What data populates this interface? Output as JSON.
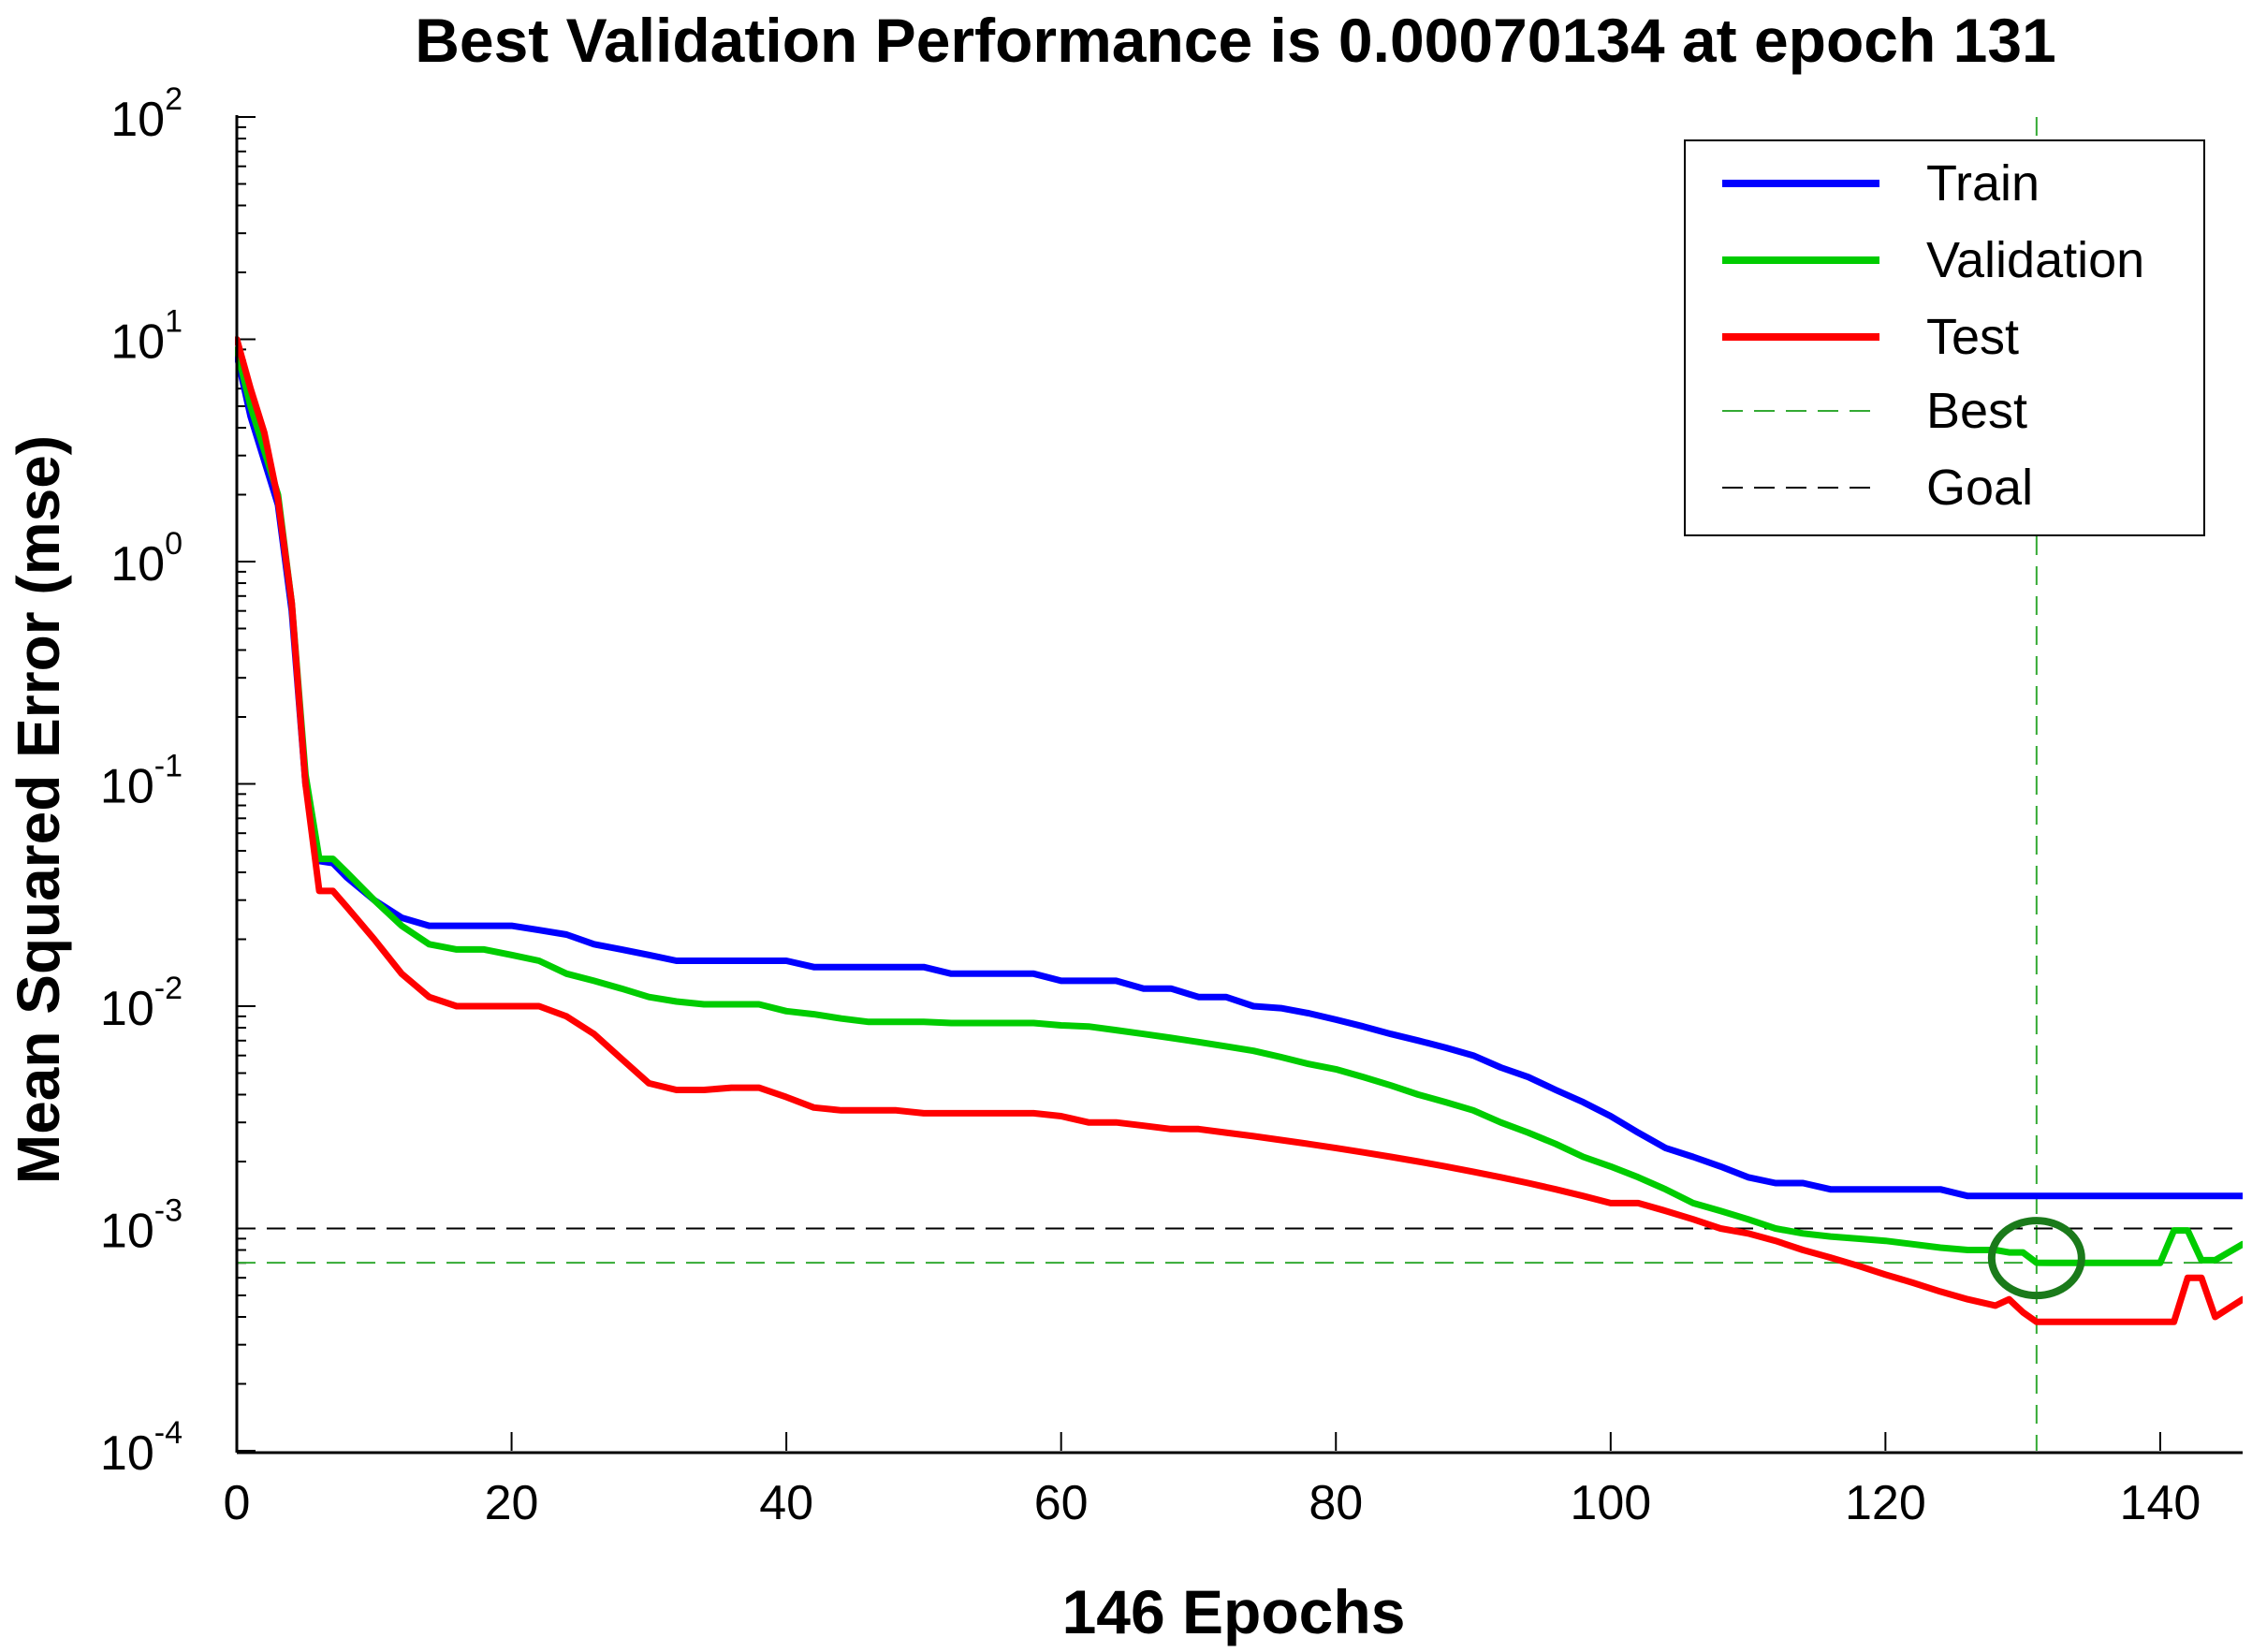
{
  "colors": {
    "train": "#0000ff",
    "validation": "#00cc00",
    "test": "#ff0000",
    "best": "#33aa33",
    "goal": "#000000",
    "best_marker": "#1a7a1a"
  },
  "chart_data": {
    "type": "line",
    "title": "Best Validation Performance is 0.00070134 at epoch 131",
    "xlabel": "146 Epochs",
    "ylabel": "Mean Squared Error  (mse)",
    "yscale": "log",
    "xlim": [
      0,
      146
    ],
    "ylim": [
      0.0001,
      100
    ],
    "x_ticks": [
      0,
      20,
      40,
      60,
      80,
      100,
      120,
      140
    ],
    "x_tick_labels": [
      "0",
      "20",
      "40",
      "60",
      "80",
      "100",
      "120",
      "140"
    ],
    "y_ticks": [
      {
        "value": 100,
        "base": "10",
        "exp": "2"
      },
      {
        "value": 10,
        "base": "10",
        "exp": "1"
      },
      {
        "value": 1,
        "base": "10",
        "exp": "0"
      },
      {
        "value": 0.1,
        "base": "10",
        "exp": "-1"
      },
      {
        "value": 0.01,
        "base": "10",
        "exp": "-2"
      },
      {
        "value": 0.001,
        "base": "10",
        "exp": "-3"
      },
      {
        "value": 0.0001,
        "base": "10",
        "exp": "-4"
      }
    ],
    "legend_position": "top-right",
    "legend": [
      "Train",
      "Validation",
      "Test",
      "Best",
      "Goal"
    ],
    "series": [
      {
        "name": "Train",
        "x": [
          0,
          1,
          3,
          4,
          5,
          6,
          7,
          8,
          10,
          12,
          14,
          16,
          18,
          20,
          22,
          24,
          26,
          28,
          30,
          32,
          34,
          36,
          38,
          40,
          42,
          44,
          46,
          48,
          50,
          52,
          54,
          56,
          58,
          60,
          62,
          64,
          66,
          68,
          70,
          72,
          74,
          76,
          78,
          80,
          82,
          84,
          86,
          88,
          90,
          92,
          94,
          96,
          98,
          100,
          102,
          104,
          106,
          108,
          110,
          112,
          114,
          116,
          118,
          120,
          122,
          124,
          126,
          128,
          130,
          132,
          134,
          136,
          138,
          140,
          141,
          142,
          143,
          144,
          146
        ],
        "values": [
          8.5,
          4.5,
          1.8,
          0.6,
          0.1,
          0.045,
          0.044,
          0.038,
          0.03,
          0.025,
          0.023,
          0.023,
          0.023,
          0.023,
          0.022,
          0.021,
          0.019,
          0.018,
          0.017,
          0.016,
          0.016,
          0.016,
          0.016,
          0.016,
          0.015,
          0.015,
          0.015,
          0.015,
          0.015,
          0.014,
          0.014,
          0.014,
          0.014,
          0.013,
          0.013,
          0.013,
          0.012,
          0.012,
          0.011,
          0.011,
          0.01,
          0.0098,
          0.0093,
          0.0087,
          0.0081,
          0.0075,
          0.007,
          0.0065,
          0.006,
          0.0053,
          0.0048,
          0.0042,
          0.0037,
          0.0032,
          0.0027,
          0.0023,
          0.0021,
          0.0019,
          0.0017,
          0.0016,
          0.0016,
          0.0015,
          0.0015,
          0.0015,
          0.0015,
          0.0015,
          0.0014,
          0.0014,
          0.0014,
          0.0014,
          0.0014,
          0.0014,
          0.0014,
          0.0014,
          0.0014,
          0.0014,
          0.0014,
          0.0014,
          0.0014
        ]
      },
      {
        "name": "Validation",
        "x": [
          0,
          1,
          3,
          4,
          5,
          6,
          7,
          8,
          10,
          12,
          14,
          16,
          18,
          20,
          22,
          24,
          26,
          28,
          30,
          32,
          34,
          36,
          38,
          40,
          42,
          44,
          46,
          48,
          50,
          52,
          54,
          56,
          58,
          60,
          62,
          64,
          66,
          68,
          70,
          72,
          74,
          76,
          78,
          80,
          82,
          84,
          86,
          88,
          90,
          92,
          94,
          96,
          98,
          100,
          102,
          104,
          106,
          108,
          110,
          112,
          114,
          116,
          118,
          120,
          122,
          124,
          126,
          128,
          129,
          130,
          131,
          132,
          134,
          136,
          138,
          140,
          141,
          142,
          143,
          144,
          146
        ],
        "values": [
          9,
          5,
          2,
          0.65,
          0.11,
          0.046,
          0.046,
          0.04,
          0.03,
          0.023,
          0.019,
          0.018,
          0.018,
          0.017,
          0.016,
          0.014,
          0.013,
          0.012,
          0.011,
          0.0105,
          0.0102,
          0.0102,
          0.0102,
          0.0095,
          0.0092,
          0.0088,
          0.0085,
          0.0085,
          0.0085,
          0.0084,
          0.0084,
          0.0084,
          0.0084,
          0.0082,
          0.0081,
          0.0078,
          0.0075,
          0.0072,
          0.0069,
          0.0066,
          0.0063,
          0.0059,
          0.0055,
          0.0052,
          0.0048,
          0.0044,
          0.004,
          0.0037,
          0.0034,
          0.003,
          0.0027,
          0.0024,
          0.0021,
          0.0019,
          0.0017,
          0.0015,
          0.0013,
          0.0012,
          0.0011,
          0.001,
          0.00095,
          0.00092,
          0.0009,
          0.00088,
          0.00085,
          0.00082,
          0.0008,
          0.0008,
          0.00078,
          0.00078,
          0.00070134,
          0.0007,
          0.0007,
          0.0007,
          0.0007,
          0.0007,
          0.00098,
          0.00098,
          0.00072,
          0.00072,
          0.00085
        ]
      },
      {
        "name": "Test",
        "x": [
          0,
          1,
          2,
          3,
          4,
          5,
          6,
          7,
          8,
          10,
          12,
          14,
          16,
          18,
          20,
          22,
          24,
          26,
          28,
          30,
          32,
          34,
          36,
          38,
          40,
          42,
          44,
          46,
          48,
          50,
          52,
          54,
          56,
          58,
          60,
          62,
          64,
          66,
          68,
          70,
          72,
          74,
          76,
          78,
          80,
          82,
          84,
          86,
          88,
          90,
          92,
          94,
          96,
          98,
          100,
          102,
          104,
          106,
          108,
          110,
          112,
          114,
          116,
          118,
          120,
          122,
          124,
          126,
          128,
          129,
          130,
          131,
          132,
          134,
          136,
          138,
          140,
          141,
          142,
          143,
          144,
          146
        ],
        "values": [
          10,
          6,
          3.8,
          1.9,
          0.65,
          0.1,
          0.033,
          0.033,
          0.028,
          0.02,
          0.014,
          0.011,
          0.01,
          0.01,
          0.01,
          0.01,
          0.009,
          0.0075,
          0.0058,
          0.0045,
          0.0042,
          0.0042,
          0.0043,
          0.0043,
          0.0039,
          0.0035,
          0.0034,
          0.0034,
          0.0034,
          0.0033,
          0.0033,
          0.0033,
          0.0033,
          0.0033,
          0.0032,
          0.003,
          0.003,
          0.0029,
          0.0028,
          0.0028,
          0.0027,
          0.0026,
          0.0025,
          0.0024,
          0.0023,
          0.0022,
          0.0021,
          0.002,
          0.0019,
          0.0018,
          0.0017,
          0.0016,
          0.0015,
          0.0014,
          0.0013,
          0.0013,
          0.0012,
          0.0011,
          0.001,
          0.00095,
          0.00088,
          0.0008,
          0.00074,
          0.00068,
          0.00062,
          0.00057,
          0.00052,
          0.00048,
          0.00045,
          0.00048,
          0.00042,
          0.00038,
          0.00038,
          0.00038,
          0.00038,
          0.00038,
          0.00038,
          0.00038,
          0.0006,
          0.0006,
          0.0004,
          0.00048
        ]
      }
    ],
    "reference_lines": [
      {
        "name": "Best",
        "axis": "y",
        "value": 0.00070134
      },
      {
        "name": "Best",
        "axis": "x",
        "value": 131
      },
      {
        "name": "Goal",
        "axis": "y",
        "value": 0.001
      }
    ],
    "best_marker": {
      "epoch": 131,
      "value": 0.00070134
    }
  }
}
